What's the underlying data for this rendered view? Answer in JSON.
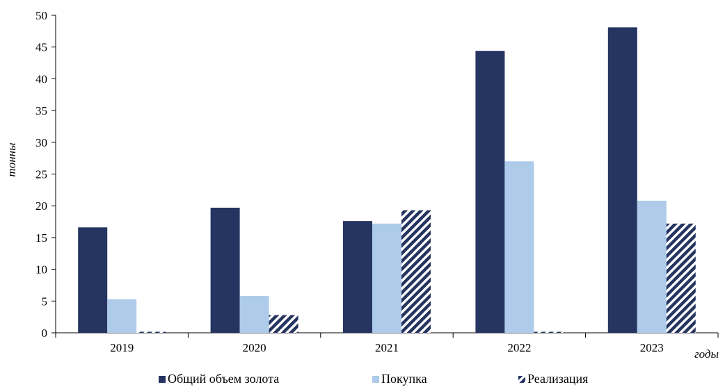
{
  "chart_data": {
    "type": "bar",
    "categories": [
      "2019",
      "2020",
      "2021",
      "2022",
      "2023"
    ],
    "series": [
      {
        "name": "Общий объем золота",
        "values": [
          16.6,
          19.7,
          17.6,
          44.4,
          48.1
        ],
        "color": "#253460",
        "pattern": "solid"
      },
      {
        "name": "Покупка",
        "values": [
          5.3,
          5.8,
          17.2,
          27.0,
          20.8
        ],
        "color": "#aecbea",
        "pattern": "solid"
      },
      {
        "name": "Реализация",
        "values": [
          0.1,
          2.8,
          19.3,
          0.1,
          17.2
        ],
        "color": "#253460",
        "pattern": "diagonal-stripes"
      }
    ],
    "ylabel": "тонны",
    "xlabel": "годы",
    "ylim": [
      0,
      50
    ],
    "yticks": [
      0,
      5,
      10,
      15,
      20,
      25,
      30,
      35,
      40,
      45,
      50
    ],
    "grid": false,
    "legend_position": "bottom"
  }
}
